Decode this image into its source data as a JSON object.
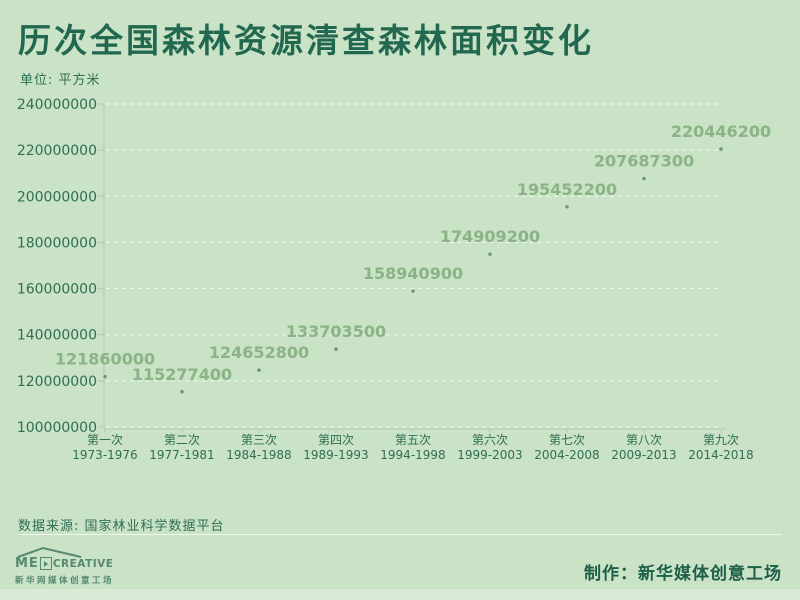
{
  "header": {
    "title": "历次全国森林资源清查森林面积变化",
    "unit_label": "单位: 平方米"
  },
  "chart_data": {
    "type": "scatter",
    "title": "历次全国森林资源清查森林面积变化",
    "unit": "平方米",
    "categories": [
      "第一次",
      "第二次",
      "第三次",
      "第四次",
      "第五次",
      "第六次",
      "第七次",
      "第八次",
      "第九次"
    ],
    "year_ranges": [
      "1973-1976",
      "1977-1981",
      "1984-1988",
      "1989-1993",
      "1994-1998",
      "1999-2003",
      "2004-2008",
      "2009-2013",
      "2014-2018"
    ],
    "values": [
      121860000,
      115277400,
      124652800,
      133703500,
      158940900,
      174909200,
      195452200,
      207687300,
      220446200
    ],
    "ylim": [
      100000000,
      240000000
    ],
    "ytick_step": 20000000,
    "grid": "horizontal-dashed",
    "legend": "none",
    "data_labels": true
  },
  "footer": {
    "source": "数据来源: 国家林业科学数据平台",
    "credit": "制作：新华媒体创意工场",
    "logo": {
      "brand_me": "ME",
      "brand_rest": "CREATIVE",
      "subtitle": "新华网媒体创意工场"
    }
  },
  "colors": {
    "background": "#cae2c5",
    "title": "#226850",
    "axis_text": "#2f6f54",
    "data_label": "#8ab386",
    "point": "#67976a",
    "grid_line": "#ffffff",
    "axis_line": "#b5c9b1",
    "credit": "#1d5f48",
    "logo": "#447a63"
  }
}
